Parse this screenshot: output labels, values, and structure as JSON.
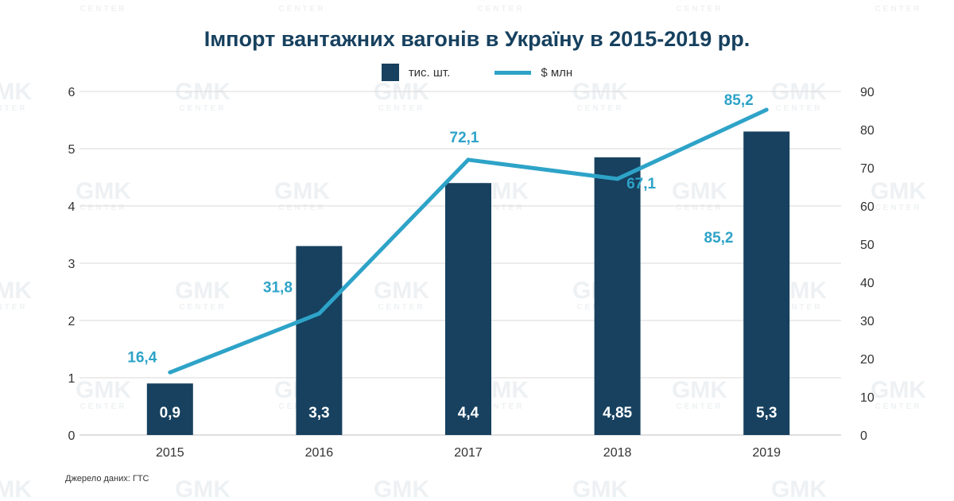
{
  "title": "Імпорт вантажних вагонів в Україну в 2015-2019 рр.",
  "legend": {
    "bar_label": "тис. шт.",
    "line_label": "$ млн"
  },
  "source": "Джерело даних: ГТС",
  "watermark": {
    "text": "GMK",
    "subtext": "CENTER"
  },
  "colors": {
    "bar": "#17415f",
    "line": "#2ea3c8",
    "grid": "#d9d9d9",
    "axis_text": "#333333"
  },
  "chart_data": {
    "type": "bar",
    "categories": [
      "2015",
      "2016",
      "2017",
      "2018",
      "2019"
    ],
    "series": [
      {
        "name": "тис. шт.",
        "type": "bar",
        "axis": "left",
        "values": [
          0.9,
          3.3,
          4.4,
          4.85,
          5.3
        ],
        "labels": [
          "0,9",
          "3,3",
          "4,4",
          "4,85",
          "5,3"
        ]
      },
      {
        "name": "$ млн",
        "type": "line",
        "axis": "right",
        "values": [
          16.4,
          31.8,
          72.1,
          67.1,
          85.2
        ],
        "labels": [
          "16,4",
          "31,8",
          "72,1",
          "67,1",
          "85,2"
        ]
      }
    ],
    "extra_annotation": "85,2",
    "y_left": {
      "range": [
        0,
        6
      ],
      "ticks": [
        "0",
        "1",
        "2",
        "3",
        "4",
        "5",
        "6"
      ]
    },
    "y_right": {
      "range": [
        0,
        90
      ],
      "ticks": [
        "0",
        "10",
        "20",
        "30",
        "40",
        "50",
        "60",
        "70",
        "80",
        "90"
      ]
    },
    "grid": true,
    "legend_position": "top-center"
  }
}
